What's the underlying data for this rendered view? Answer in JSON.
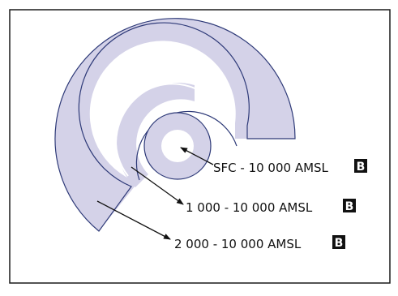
{
  "colors": {
    "zone_fill": "#d4d2e8",
    "outline": "#2e3a78",
    "frame": "#1a1a1a",
    "arrow": "#111111",
    "badge_bg": "#111111",
    "badge_text": "#ffffff",
    "background": "#ffffff"
  },
  "labels": [
    {
      "id": "inner",
      "text": "SFC - 10 000 AMSL",
      "badge": "B"
    },
    {
      "id": "middle",
      "text": "1 000 - 10 000 AMSL",
      "badge": "B"
    },
    {
      "id": "outer",
      "text": "2 000 - 10 000 AMSL",
      "badge": "B"
    }
  ]
}
